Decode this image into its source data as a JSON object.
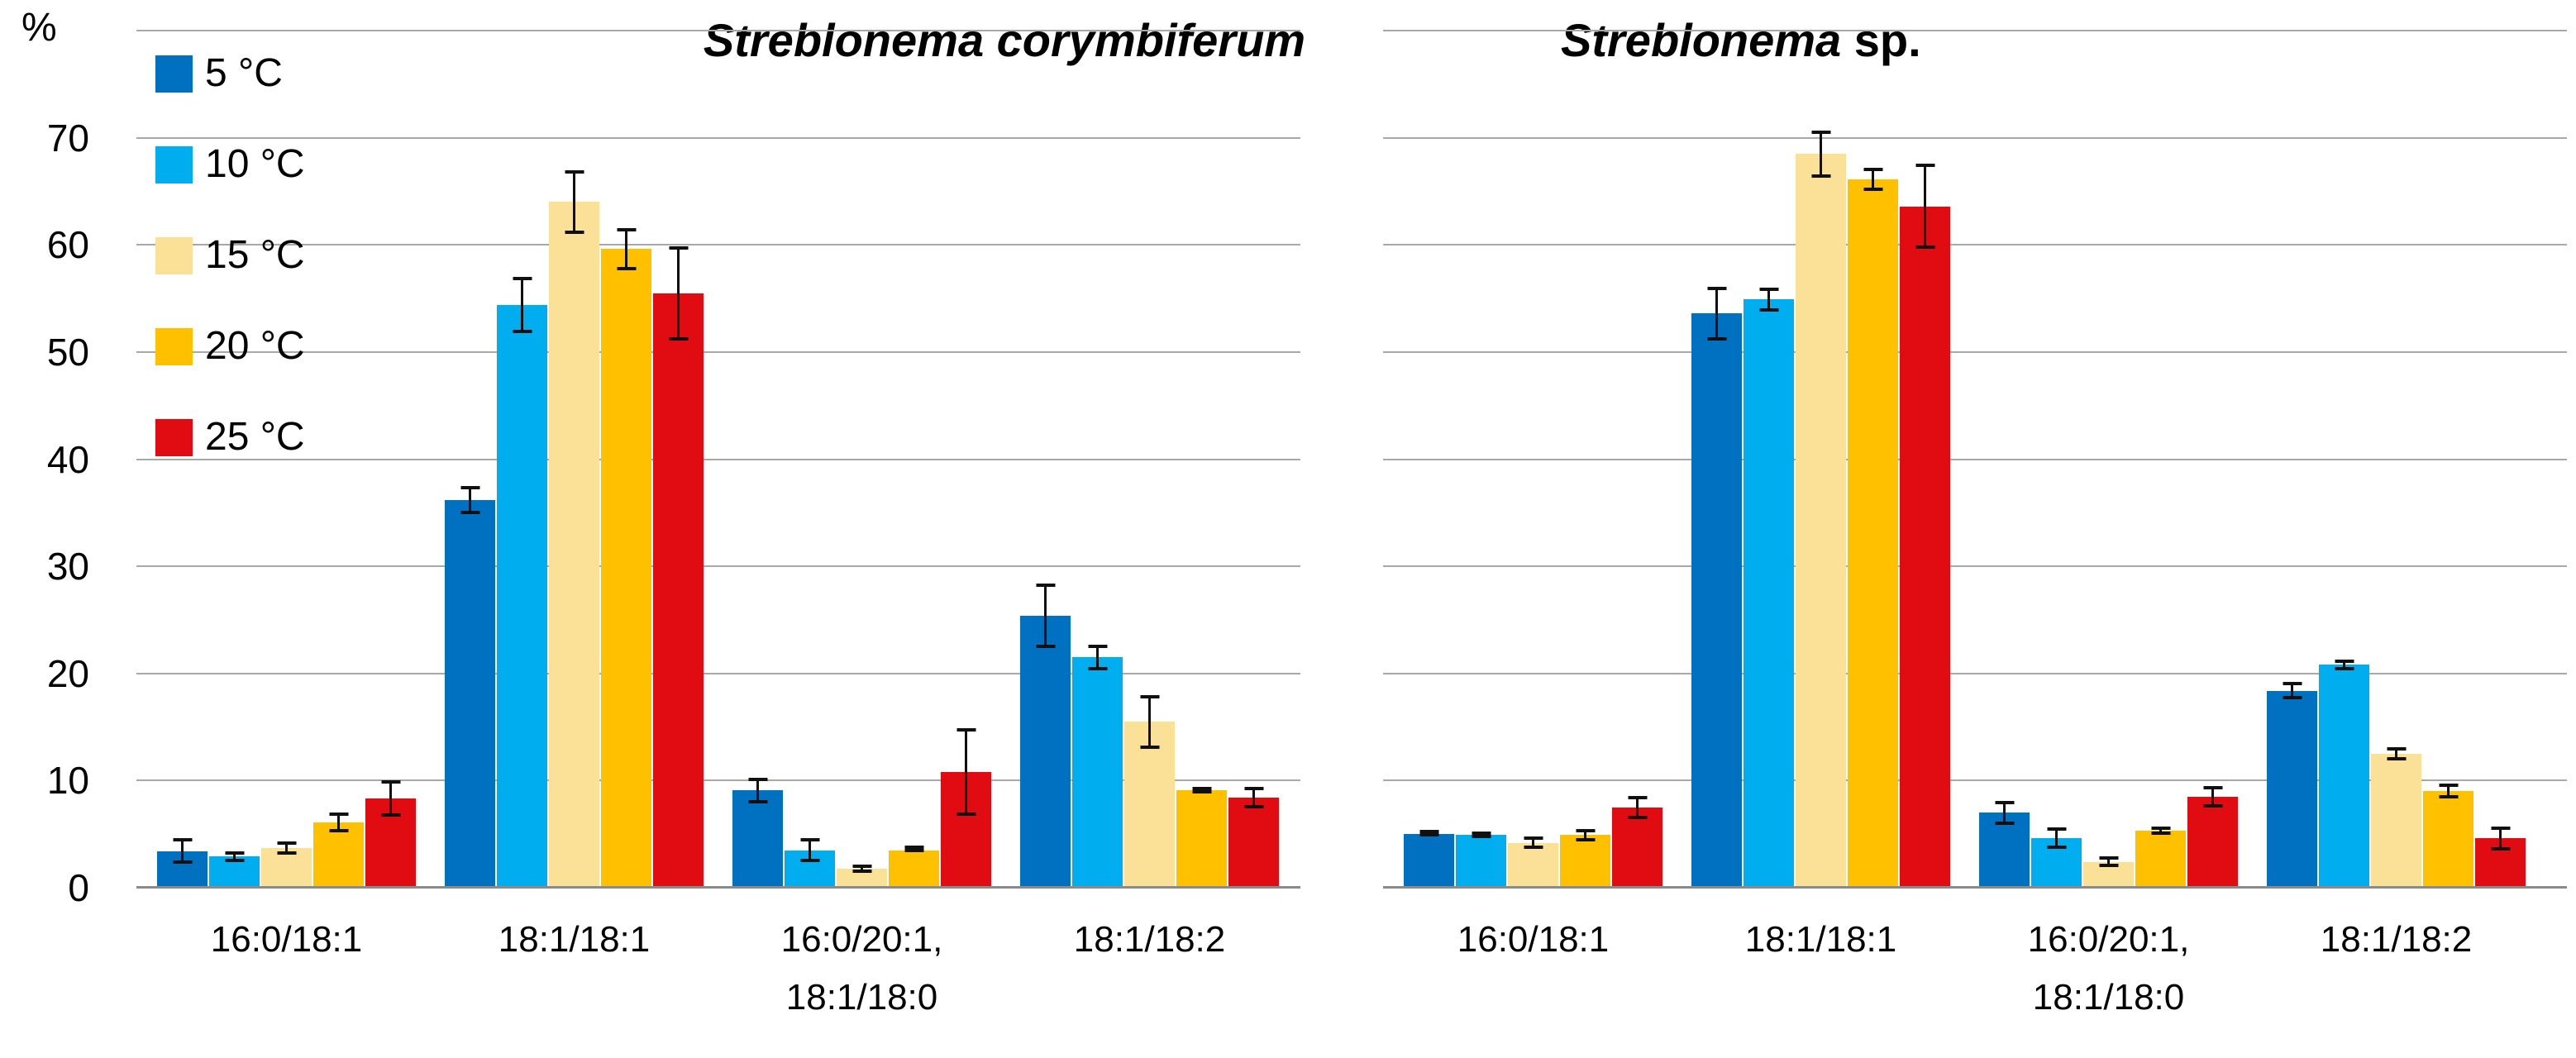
{
  "y_axis": {
    "unit": "%",
    "ticks": [
      {
        "label": "70",
        "value": 70
      },
      {
        "label": "60",
        "value": 60
      },
      {
        "label": "50",
        "value": 50
      },
      {
        "label": "40",
        "value": 40
      },
      {
        "label": "30",
        "value": 30
      },
      {
        "label": "20",
        "value": 20
      },
      {
        "label": "10",
        "value": 10
      },
      {
        "label": "0",
        "value": 0
      }
    ]
  },
  "legend": {
    "items": [
      {
        "label": "5 °C",
        "color": "#0070C0"
      },
      {
        "label": "10 °C",
        "color": "#00AEEF"
      },
      {
        "label": "15 °C",
        "color": "#FBE198"
      },
      {
        "label": "20 °C",
        "color": "#FFC000"
      },
      {
        "label": "25 °C",
        "color": "#E10B12"
      }
    ]
  },
  "chart_data": {
    "type": "bar",
    "ylim": [
      0,
      80
    ],
    "gridline_step": 10,
    "grid": true,
    "ylabel": "%",
    "legend_position": "top-left",
    "categories": [
      {
        "lines": [
          "16:0/18:1"
        ]
      },
      {
        "lines": [
          "18:1/18:1"
        ]
      },
      {
        "lines": [
          "16:0/20:1,",
          "18:1/18:0"
        ]
      },
      {
        "lines": [
          "18:1/18:2"
        ]
      }
    ],
    "panels": [
      {
        "key": "corymbiferum",
        "title": {
          "italic": "Streblonema corymbiferum",
          "regular": ""
        },
        "series": [
          {
            "name": "5 °C",
            "color": "#0070C0",
            "values": [
              3.4,
              36.2,
              9.1,
              25.4
            ],
            "errors": [
              1.2,
              1.3,
              1.2,
              3.0
            ]
          },
          {
            "name": "10 °C",
            "color": "#00AEEF",
            "values": [
              2.9,
              54.4,
              3.5,
              21.5
            ],
            "errors": [
              0.5,
              2.6,
              1.1,
              1.2
            ]
          },
          {
            "name": "15 °C",
            "color": "#FBE198",
            "values": [
              3.7,
              64.0,
              1.8,
              15.5
            ],
            "errors": [
              0.6,
              3.0,
              0.4,
              2.5
            ]
          },
          {
            "name": "20 °C",
            "color": "#FFC000",
            "values": [
              6.1,
              59.6,
              3.5,
              9.1
            ],
            "errors": [
              0.9,
              2.0,
              0.2,
              0.3
            ]
          },
          {
            "name": "25 °C",
            "color": "#E10B12",
            "values": [
              8.3,
              55.5,
              10.8,
              8.4
            ],
            "errors": [
              1.7,
              4.4,
              4.1,
              1.0
            ]
          }
        ]
      },
      {
        "key": "sp",
        "title": {
          "italic": "Streblonema",
          "regular": " sp."
        },
        "series": [
          {
            "name": "5 °C",
            "color": "#0070C0",
            "values": [
              5.0,
              53.6,
              7.0,
              18.4
            ],
            "errors": [
              0.2,
              2.5,
              1.1,
              0.8
            ]
          },
          {
            "name": "10 °C",
            "color": "#00AEEF",
            "values": [
              4.9,
              54.9,
              4.6,
              20.8
            ],
            "errors": [
              0.3,
              1.1,
              1.0,
              0.5
            ]
          },
          {
            "name": "15 °C",
            "color": "#FBE198",
            "values": [
              4.2,
              68.5,
              2.4,
              12.5
            ],
            "errors": [
              0.6,
              2.2,
              0.5,
              0.6
            ]
          },
          {
            "name": "20 °C",
            "color": "#FFC000",
            "values": [
              4.9,
              66.1,
              5.3,
              9.0
            ],
            "errors": [
              0.6,
              1.1,
              0.4,
              0.7
            ]
          },
          {
            "name": "25 °C",
            "color": "#E10B12",
            "values": [
              7.5,
              63.6,
              8.5,
              4.6
            ],
            "errors": [
              1.1,
              4.0,
              1.0,
              1.1
            ]
          }
        ]
      }
    ]
  }
}
